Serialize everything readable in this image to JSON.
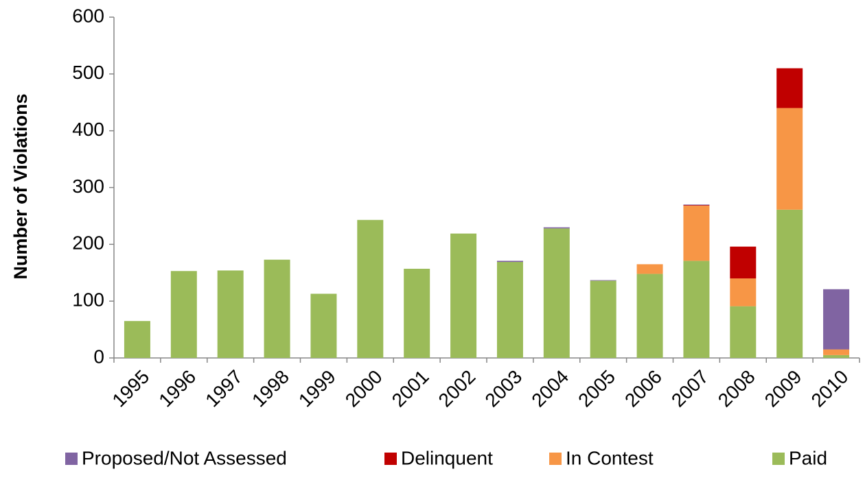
{
  "chart_data": {
    "type": "stacked_bar",
    "y_label": "Number of Violations",
    "categories": [
      "1995",
      "1996",
      "1997",
      "1998",
      "1999",
      "2000",
      "2001",
      "2002",
      "2003",
      "2004",
      "2005",
      "2006",
      "2007",
      "2008",
      "2009",
      "2010"
    ],
    "series": [
      {
        "name": "Proposed/Not Assessed",
        "color": "#8064a2",
        "values": [
          0,
          0,
          0,
          0,
          0,
          0,
          0,
          0,
          2,
          2,
          1,
          0,
          1,
          0,
          0,
          106
        ]
      },
      {
        "name": "Delinquent",
        "color": "#c00000",
        "values": [
          0,
          0,
          0,
          0,
          0,
          0,
          0,
          0,
          0,
          0,
          0,
          0,
          1,
          56,
          70,
          0
        ]
      },
      {
        "name": "In Contest",
        "color": "#f79646",
        "values": [
          0,
          0,
          0,
          0,
          0,
          0,
          0,
          0,
          0,
          0,
          0,
          17,
          97,
          49,
          179,
          10
        ]
      },
      {
        "name": "Paid",
        "color": "#9bbb59",
        "values": [
          65,
          153,
          154,
          173,
          113,
          243,
          157,
          219,
          169,
          228,
          136,
          148,
          171,
          91,
          261,
          5
        ]
      }
    ],
    "ylim": [
      0,
      600
    ],
    "yticks": [
      0,
      100,
      200,
      300,
      400,
      500,
      600
    ]
  }
}
